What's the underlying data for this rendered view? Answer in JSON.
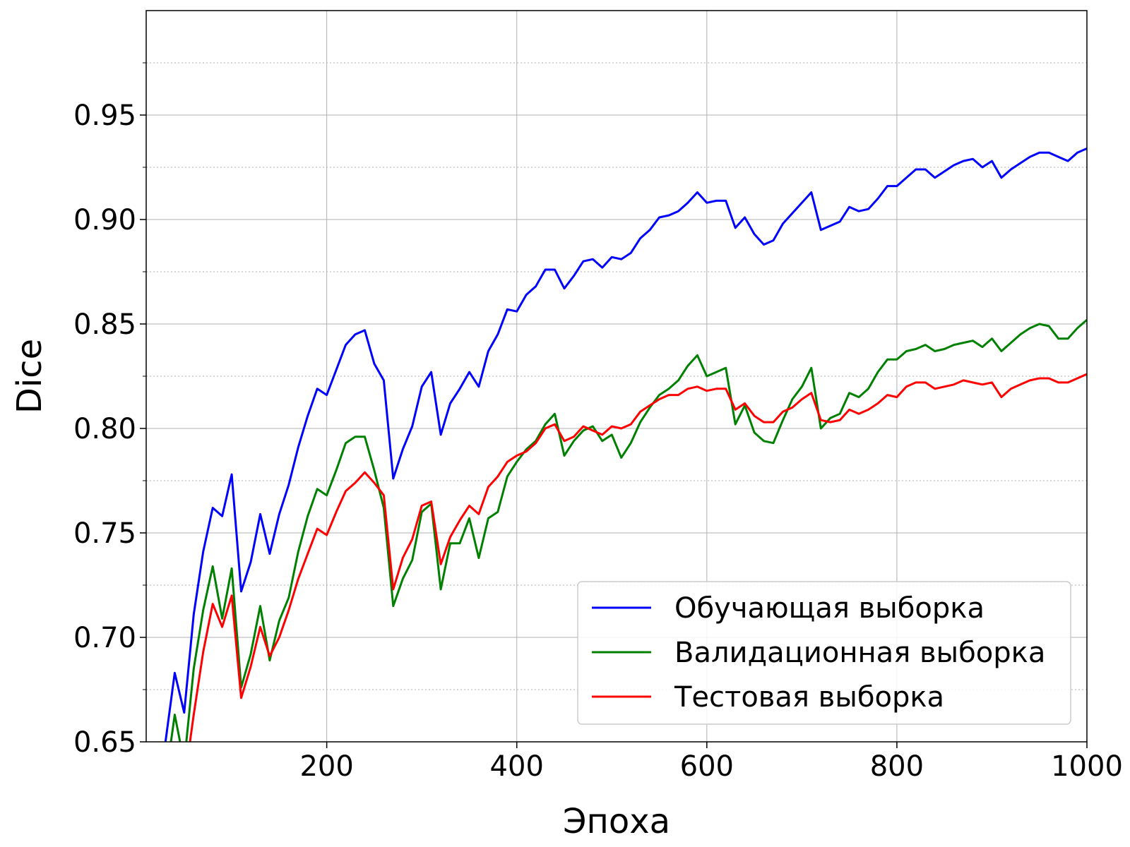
{
  "chart_data": {
    "type": "line",
    "xlabel": "Эпоха",
    "ylabel": "Dice",
    "xlim": [
      10,
      1000
    ],
    "ylim": [
      0.65,
      1.0
    ],
    "xticks": [
      200,
      400,
      600,
      800,
      1000
    ],
    "xtick_labels": [
      "200",
      "400",
      "600",
      "800",
      "1000"
    ],
    "yticks": [
      0.65,
      0.7,
      0.75,
      0.8,
      0.85,
      0.9,
      0.95
    ],
    "ytick_labels": [
      "0.65",
      "0.70",
      "0.75",
      "0.80",
      "0.85",
      "0.90",
      "0.95"
    ],
    "y_minor_grid": [
      0.675,
      0.725,
      0.775,
      0.825,
      0.875,
      0.925,
      0.975
    ],
    "grid": true,
    "legend_position": "lower-right",
    "x": [
      30,
      40,
      50,
      60,
      70,
      80,
      90,
      100,
      110,
      120,
      130,
      140,
      150,
      160,
      170,
      180,
      190,
      200,
      210,
      220,
      230,
      240,
      250,
      260,
      270,
      280,
      290,
      300,
      310,
      320,
      330,
      340,
      350,
      360,
      370,
      380,
      390,
      400,
      410,
      420,
      430,
      440,
      450,
      460,
      470,
      480,
      490,
      500,
      510,
      520,
      530,
      540,
      550,
      560,
      570,
      580,
      590,
      600,
      610,
      620,
      630,
      640,
      650,
      660,
      670,
      680,
      690,
      700,
      710,
      720,
      730,
      740,
      750,
      760,
      770,
      780,
      790,
      800,
      810,
      820,
      830,
      840,
      850,
      860,
      870,
      880,
      890,
      900,
      910,
      920,
      930,
      940,
      950,
      960,
      970,
      980,
      990,
      1000
    ],
    "series": [
      {
        "name": "Обучающая выборка",
        "color": "#0000ff",
        "values": [
          0.649,
          0.683,
          0.664,
          0.711,
          0.741,
          0.762,
          0.758,
          0.778,
          0.722,
          0.736,
          0.759,
          0.74,
          0.759,
          0.773,
          0.791,
          0.806,
          0.819,
          0.816,
          0.828,
          0.84,
          0.845,
          0.847,
          0.831,
          0.823,
          0.776,
          0.79,
          0.801,
          0.82,
          0.827,
          0.797,
          0.812,
          0.819,
          0.827,
          0.82,
          0.837,
          0.845,
          0.857,
          0.856,
          0.864,
          0.868,
          0.876,
          0.876,
          0.867,
          0.873,
          0.88,
          0.881,
          0.877,
          0.882,
          0.881,
          0.884,
          0.891,
          0.895,
          0.901,
          0.902,
          0.904,
          0.908,
          0.913,
          0.908,
          0.909,
          0.909,
          0.896,
          0.901,
          0.893,
          0.888,
          0.89,
          0.898,
          0.903,
          0.908,
          0.913,
          0.895,
          0.897,
          0.899,
          0.906,
          0.904,
          0.905,
          0.91,
          0.916,
          0.916,
          0.92,
          0.924,
          0.924,
          0.92,
          0.923,
          0.926,
          0.928,
          0.929,
          0.925,
          0.928,
          0.92,
          0.924,
          0.927,
          0.93,
          0.932,
          0.932,
          0.93,
          0.928,
          0.932,
          0.934
        ]
      },
      {
        "name": "Валидационная выборка",
        "color": "#008000",
        "values": [
          0.63,
          0.663,
          0.64,
          0.685,
          0.713,
          0.734,
          0.709,
          0.733,
          0.676,
          0.692,
          0.715,
          0.689,
          0.708,
          0.719,
          0.741,
          0.758,
          0.771,
          0.768,
          0.78,
          0.793,
          0.796,
          0.796,
          0.78,
          0.762,
          0.715,
          0.728,
          0.737,
          0.76,
          0.764,
          0.723,
          0.745,
          0.745,
          0.757,
          0.738,
          0.757,
          0.76,
          0.777,
          0.784,
          0.79,
          0.794,
          0.802,
          0.807,
          0.787,
          0.794,
          0.799,
          0.801,
          0.794,
          0.797,
          0.786,
          0.793,
          0.803,
          0.81,
          0.816,
          0.819,
          0.823,
          0.83,
          0.835,
          0.825,
          0.827,
          0.829,
          0.802,
          0.811,
          0.798,
          0.794,
          0.793,
          0.804,
          0.814,
          0.82,
          0.829,
          0.8,
          0.805,
          0.807,
          0.817,
          0.815,
          0.819,
          0.827,
          0.833,
          0.833,
          0.837,
          0.838,
          0.84,
          0.837,
          0.838,
          0.84,
          0.841,
          0.842,
          0.839,
          0.843,
          0.837,
          0.841,
          0.845,
          0.848,
          0.85,
          0.849,
          0.843,
          0.843,
          0.848,
          0.852
        ]
      },
      {
        "name": "Тестовая выборка",
        "color": "#ff0000",
        "values": [
          0.62,
          0.645,
          0.63,
          0.663,
          0.693,
          0.716,
          0.705,
          0.72,
          0.671,
          0.686,
          0.705,
          0.691,
          0.7,
          0.713,
          0.728,
          0.74,
          0.752,
          0.749,
          0.76,
          0.77,
          0.774,
          0.779,
          0.774,
          0.768,
          0.723,
          0.738,
          0.747,
          0.763,
          0.765,
          0.735,
          0.748,
          0.756,
          0.763,
          0.759,
          0.772,
          0.777,
          0.784,
          0.787,
          0.789,
          0.793,
          0.8,
          0.802,
          0.794,
          0.796,
          0.801,
          0.799,
          0.797,
          0.801,
          0.8,
          0.802,
          0.808,
          0.811,
          0.814,
          0.816,
          0.816,
          0.819,
          0.82,
          0.818,
          0.819,
          0.819,
          0.809,
          0.812,
          0.806,
          0.803,
          0.803,
          0.808,
          0.81,
          0.814,
          0.817,
          0.804,
          0.803,
          0.804,
          0.809,
          0.807,
          0.809,
          0.812,
          0.816,
          0.815,
          0.82,
          0.822,
          0.822,
          0.819,
          0.82,
          0.821,
          0.823,
          0.822,
          0.821,
          0.822,
          0.815,
          0.819,
          0.821,
          0.823,
          0.824,
          0.824,
          0.822,
          0.822,
          0.824,
          0.826
        ]
      }
    ]
  }
}
